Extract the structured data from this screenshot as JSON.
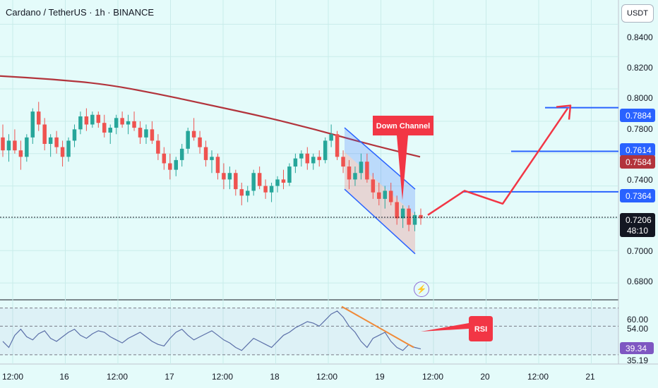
{
  "header": {
    "symbol_title": "Cardano / TetherUS · 1h · BINANCE",
    "currency_button": "USDT"
  },
  "price_axis": {
    "ticks": [
      "0.8400",
      "0.8200",
      "0.8000",
      "0.7800",
      "0.7400",
      "0.7000",
      "0.6800"
    ]
  },
  "price_labels": {
    "target_top": "0.7884",
    "level_mid": "0.7614",
    "ma_value": "0.7584",
    "level_low": "0.7364",
    "current": "0.7206",
    "countdown": "48:10"
  },
  "annotations": {
    "callout": "Down Channel",
    "rsi_note": "RSI"
  },
  "rsi_axis": {
    "upper": "60.00",
    "upper_label": "54.00",
    "current": "39.34",
    "lower": "35.19"
  },
  "time_axis": [
    "12:00",
    "16",
    "12:00",
    "17",
    "12:00",
    "18",
    "12:00",
    "19",
    "12:00",
    "20",
    "12:00",
    "21"
  ],
  "colors": {
    "up": "#26a69a",
    "down": "#ef5350",
    "ma": "#b2343c",
    "channel": "#2962ff",
    "arrow": "#f23645",
    "rsi": "#7e57c2",
    "bg": "#e4fbfa"
  },
  "chart_data": {
    "type": "candlestick",
    "title": "Cardano / TetherUS · 1h · BINANCE",
    "ylim": [
      0.67,
      0.855
    ],
    "candles": [
      [
        0.77,
        0.778,
        0.758,
        0.762
      ],
      [
        0.762,
        0.772,
        0.755,
        0.768
      ],
      [
        0.768,
        0.775,
        0.76,
        0.762
      ],
      [
        0.762,
        0.768,
        0.75,
        0.758
      ],
      [
        0.758,
        0.772,
        0.755,
        0.77
      ],
      [
        0.77,
        0.788,
        0.766,
        0.786
      ],
      [
        0.786,
        0.792,
        0.774,
        0.778
      ],
      [
        0.778,
        0.782,
        0.762,
        0.766
      ],
      [
        0.766,
        0.772,
        0.758,
        0.77
      ],
      [
        0.77,
        0.774,
        0.76,
        0.764
      ],
      [
        0.764,
        0.768,
        0.752,
        0.758
      ],
      [
        0.758,
        0.77,
        0.755,
        0.768
      ],
      [
        0.768,
        0.778,
        0.764,
        0.775
      ],
      [
        0.775,
        0.786,
        0.772,
        0.783
      ],
      [
        0.783,
        0.788,
        0.774,
        0.778
      ],
      [
        0.778,
        0.786,
        0.776,
        0.784
      ],
      [
        0.784,
        0.786,
        0.776,
        0.779
      ],
      [
        0.779,
        0.784,
        0.77,
        0.773
      ],
      [
        0.773,
        0.778,
        0.766,
        0.776
      ],
      [
        0.776,
        0.784,
        0.772,
        0.782
      ],
      [
        0.782,
        0.786,
        0.776,
        0.778
      ],
      [
        0.778,
        0.784,
        0.772,
        0.78
      ],
      [
        0.78,
        0.786,
        0.774,
        0.776
      ],
      [
        0.776,
        0.78,
        0.766,
        0.77
      ],
      [
        0.77,
        0.778,
        0.766,
        0.775
      ],
      [
        0.775,
        0.78,
        0.766,
        0.768
      ],
      [
        0.768,
        0.772,
        0.756,
        0.76
      ],
      [
        0.76,
        0.764,
        0.75,
        0.754
      ],
      [
        0.754,
        0.76,
        0.744,
        0.75
      ],
      [
        0.75,
        0.758,
        0.746,
        0.756
      ],
      [
        0.756,
        0.766,
        0.752,
        0.763
      ],
      [
        0.763,
        0.776,
        0.76,
        0.774
      ],
      [
        0.774,
        0.782,
        0.768,
        0.77
      ],
      [
        0.77,
        0.774,
        0.76,
        0.764
      ],
      [
        0.764,
        0.768,
        0.752,
        0.756
      ],
      [
        0.756,
        0.762,
        0.748,
        0.758
      ],
      [
        0.758,
        0.76,
        0.744,
        0.748
      ],
      [
        0.748,
        0.754,
        0.738,
        0.744
      ],
      [
        0.744,
        0.752,
        0.738,
        0.748
      ],
      [
        0.748,
        0.75,
        0.734,
        0.738
      ],
      [
        0.738,
        0.742,
        0.728,
        0.734
      ],
      [
        0.734,
        0.74,
        0.73,
        0.737
      ],
      [
        0.737,
        0.75,
        0.734,
        0.748
      ],
      [
        0.748,
        0.752,
        0.738,
        0.74
      ],
      [
        0.74,
        0.744,
        0.732,
        0.736
      ],
      [
        0.736,
        0.742,
        0.73,
        0.74
      ],
      [
        0.74,
        0.746,
        0.736,
        0.744
      ],
      [
        0.744,
        0.75,
        0.738,
        0.742
      ],
      [
        0.742,
        0.754,
        0.74,
        0.752
      ],
      [
        0.752,
        0.76,
        0.748,
        0.757
      ],
      [
        0.757,
        0.762,
        0.752,
        0.76
      ],
      [
        0.76,
        0.764,
        0.75,
        0.754
      ],
      [
        0.754,
        0.76,
        0.75,
        0.758
      ],
      [
        0.758,
        0.762,
        0.752,
        0.756
      ],
      [
        0.756,
        0.77,
        0.754,
        0.768
      ],
      [
        0.768,
        0.778,
        0.764,
        0.772
      ],
      [
        0.772,
        0.774,
        0.756,
        0.758
      ],
      [
        0.758,
        0.762,
        0.748,
        0.752
      ],
      [
        0.752,
        0.756,
        0.738,
        0.744
      ],
      [
        0.744,
        0.752,
        0.74,
        0.748
      ],
      [
        0.748,
        0.76,
        0.744,
        0.755
      ],
      [
        0.755,
        0.76,
        0.742,
        0.744
      ],
      [
        0.744,
        0.748,
        0.732,
        0.736
      ],
      [
        0.736,
        0.742,
        0.728,
        0.732
      ],
      [
        0.732,
        0.74,
        0.726,
        0.737
      ],
      [
        0.737,
        0.742,
        0.728,
        0.73
      ],
      [
        0.73,
        0.734,
        0.716,
        0.72
      ],
      [
        0.72,
        0.728,
        0.714,
        0.726
      ],
      [
        0.726,
        0.728,
        0.712,
        0.716
      ],
      [
        0.716,
        0.724,
        0.712,
        0.722
      ],
      [
        0.722,
        0.726,
        0.716,
        0.72
      ]
    ],
    "moving_average": [
      0.808,
      0.806,
      0.803,
      0.797,
      0.79,
      0.783,
      0.775,
      0.766,
      0.758
    ],
    "channel": {
      "upper": [
        0.776,
        0.738
      ],
      "lower": [
        0.738,
        0.698
      ]
    },
    "levels": [
      0.7884,
      0.7614,
      0.7364
    ],
    "current_price": 0.7206,
    "projection": [
      0.722,
      0.737,
      0.729,
      0.788
    ],
    "rsi": {
      "ylim": [
        30,
        70
      ],
      "upper": 60.0,
      "mid": 54.0,
      "lower": 35.19,
      "current": 39.34,
      "values": [
        44,
        40,
        48,
        52,
        47,
        45,
        49,
        51,
        46,
        44,
        47,
        50,
        52,
        48,
        46,
        49,
        51,
        50,
        47,
        45,
        43,
        46,
        48,
        50,
        47,
        44,
        42,
        41,
        46,
        50,
        52,
        48,
        45,
        47,
        49,
        51,
        48,
        45,
        43,
        40,
        38,
        42,
        46,
        44,
        42,
        40,
        44,
        48,
        50,
        53,
        55,
        57,
        56,
        54,
        58,
        62,
        64,
        60,
        54,
        50,
        44,
        40,
        46,
        48,
        50,
        44,
        40,
        38,
        42,
        40,
        39
      ]
    }
  }
}
